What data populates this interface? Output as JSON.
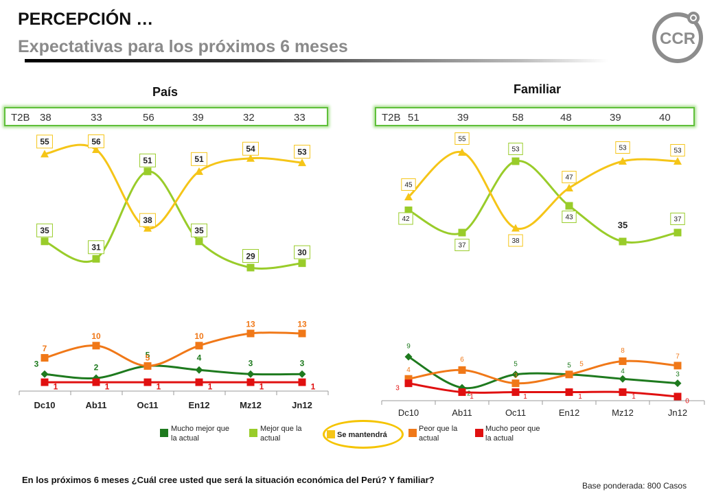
{
  "header": {
    "title": "PERCEPCIÓN …",
    "subtitle": "Expectativas para los próximos 6 meses",
    "logo_text": "CCR"
  },
  "panels": [
    {
      "title": "País",
      "t2b_label": "T2B",
      "t2b_values": [
        "38",
        "33",
        "56",
        "39",
        "32",
        "33"
      ]
    },
    {
      "title": "Familiar",
      "t2b_label": "T2B",
      "t2b_values": [
        "51",
        "39",
        "58",
        "48",
        "39",
        "40"
      ]
    }
  ],
  "colors": {
    "mucho_mejor": "#1e7a1e",
    "mejor": "#99cc2a",
    "se_mantendra": "#f5c518",
    "peor": "#f07818",
    "mucho_peor": "#e01010"
  },
  "legend": [
    {
      "label": "Mucho mejor que la actual",
      "color": "#1e7a1e"
    },
    {
      "label": "Mejor que la actual",
      "color": "#99cc2a"
    },
    {
      "label": "Se mantendrá",
      "color": "#f5c518"
    },
    {
      "label": "Peor que la actual",
      "color": "#f07818"
    },
    {
      "label": "Mucho peor que la actual",
      "color": "#e01010"
    }
  ],
  "question": "En los próximos 6 meses ¿Cuál cree usted que será la situación económica del Perú? Y familiar?",
  "base": "Base ponderada:  800 Casos",
  "chart_data": [
    {
      "type": "line",
      "title": "País",
      "categories": [
        "Dc10",
        "Ab11",
        "Oc11",
        "En12",
        "Mz12",
        "Jn12"
      ],
      "series": [
        {
          "name": "Mucho mejor que la actual",
          "values": [
            3,
            2,
            5,
            4,
            3,
            3
          ]
        },
        {
          "name": "Mejor que la actual",
          "values": [
            35,
            31,
            51,
            35,
            29,
            30
          ]
        },
        {
          "name": "Se mantendrá",
          "values": [
            55,
            56,
            38,
            51,
            54,
            53
          ]
        },
        {
          "name": "Peor que la actual",
          "values": [
            7,
            10,
            5,
            10,
            13,
            13
          ]
        },
        {
          "name": "Mucho peor que la actual",
          "values": [
            1,
            1,
            1,
            1,
            1,
            1
          ]
        }
      ]
    },
    {
      "type": "line",
      "title": "Familiar",
      "categories": [
        "Dc10",
        "Ab11",
        "Oc11",
        "En12",
        "Mz12",
        "Jn12"
      ],
      "series": [
        {
          "name": "Mucho mejor que la actual",
          "values": [
            9,
            2,
            5,
            5,
            4,
            3
          ]
        },
        {
          "name": "Mejor que la actual",
          "values": [
            42,
            37,
            53,
            43,
            35,
            37
          ]
        },
        {
          "name": "Se mantendrá",
          "values": [
            45,
            55,
            38,
            47,
            53,
            53
          ]
        },
        {
          "name": "Peor que la actual",
          "values": [
            4,
            6,
            3,
            5,
            8,
            7
          ]
        },
        {
          "name": "Mucho peor que la actual",
          "values": [
            3,
            1,
            1,
            1,
            1,
            0
          ]
        }
      ]
    }
  ]
}
